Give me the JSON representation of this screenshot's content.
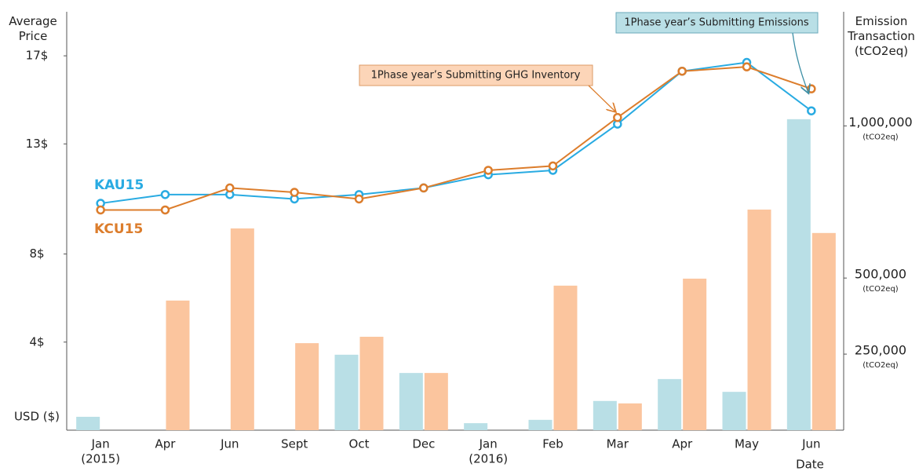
{
  "chart_data": {
    "type": "bar_line",
    "y_label": "Average Price",
    "y_unit_label": "USD ($)",
    "y2_label": "Emission Transaction (tCO2eq)",
    "y2_tick_unit": "(tCO2eq)",
    "x_label": "Date",
    "categories": [
      "Jan",
      "Apr",
      "Jun",
      "Sept",
      "Oct",
      "Dec",
      "Jan",
      "Feb",
      "Mar",
      "Apr",
      "May",
      "Jun"
    ],
    "category_sublabels": [
      "(2015)",
      null,
      null,
      null,
      null,
      null,
      "(2016)",
      null,
      null,
      null,
      null,
      null
    ],
    "ylim": [
      0,
      19
    ],
    "yticks": [
      {
        "value": 4,
        "label": "4$"
      },
      {
        "value": 8,
        "label": "8$"
      },
      {
        "value": 13,
        "label": "13$"
      },
      {
        "value": 17,
        "label": "17$"
      }
    ],
    "y2lim": [
      0,
      1375000
    ],
    "y2ticks": [
      {
        "value": 250000,
        "label": "250,000"
      },
      {
        "value": 500000,
        "label": "500,000"
      },
      {
        "value": 1000000,
        "label": "1,000,000"
      }
    ],
    "series": [
      {
        "name": "KAU15",
        "type": "line",
        "color": "#29abe2",
        "values": [
          10.3,
          10.7,
          10.7,
          10.5,
          10.7,
          11.0,
          11.6,
          11.8,
          13.9,
          16.3,
          16.7,
          14.5
        ]
      },
      {
        "name": "KCU15",
        "type": "line",
        "color": "#dc7d2c",
        "values": [
          10.0,
          10.0,
          11.0,
          10.8,
          10.5,
          11.0,
          11.8,
          12.0,
          14.2,
          16.3,
          16.5,
          15.5
        ]
      },
      {
        "type": "bar",
        "axis": "y2",
        "color": "#b9dfe6",
        "values": [
          44000,
          0,
          0,
          0,
          248000,
          188000,
          23000,
          34000,
          96000,
          168000,
          126000,
          1022000
        ]
      },
      {
        "type": "bar",
        "axis": "y2",
        "color": "#fbc59e",
        "values": [
          0,
          426000,
          663000,
          286000,
          307000,
          188000,
          0,
          475000,
          88000,
          498000,
          725000,
          648000
        ]
      }
    ],
    "annotations": [
      {
        "text": "1Phase year’s Submitting GHG Inventory"
      },
      {
        "text": "1Phase year’s Submitting Emissions"
      }
    ]
  }
}
